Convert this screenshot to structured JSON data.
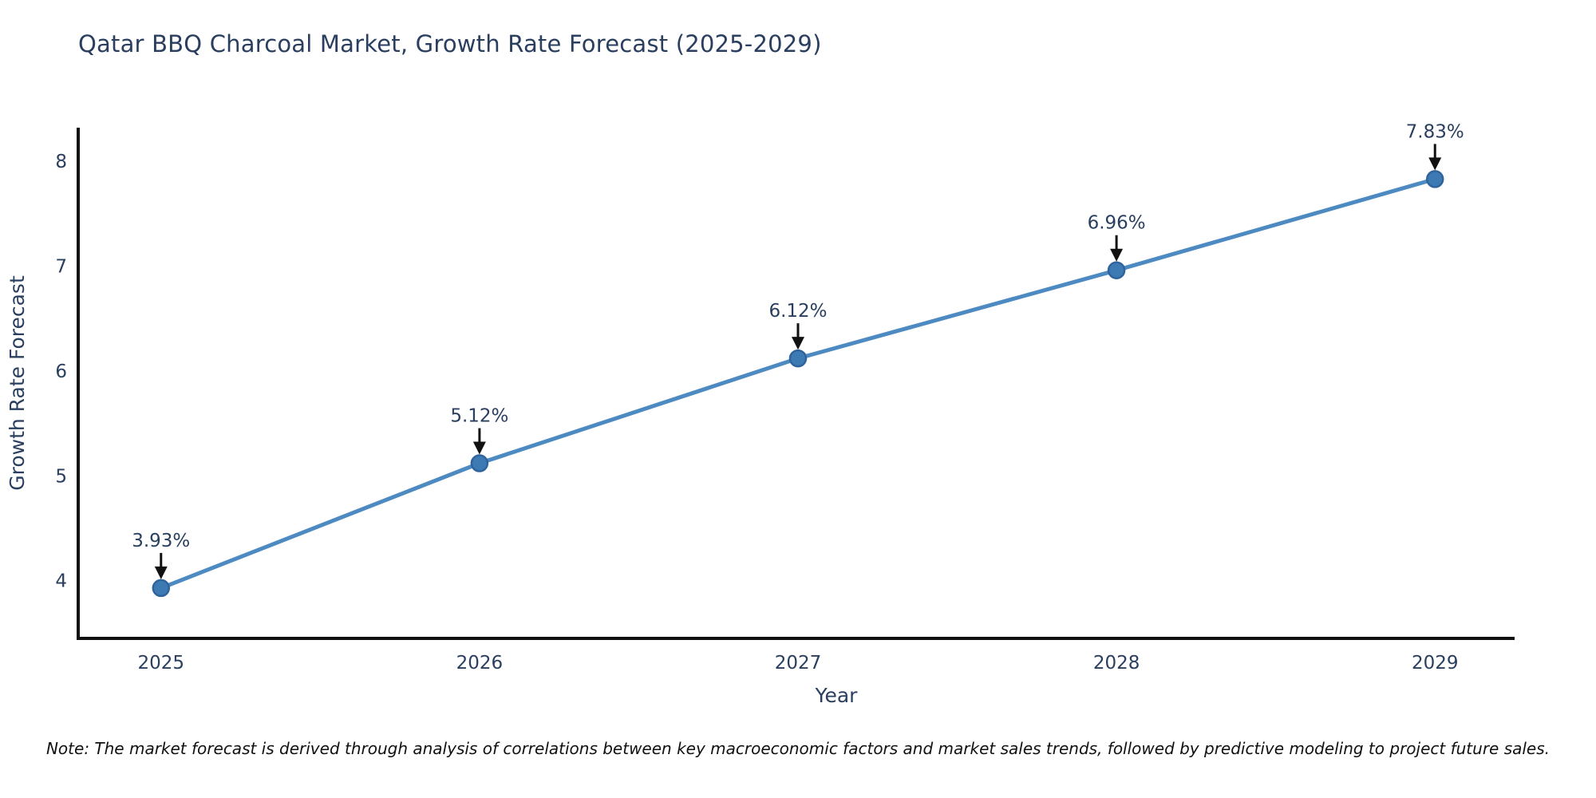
{
  "title": "Qatar BBQ Charcoal Market, Growth Rate Forecast (2025-2029)",
  "note": "Note: The market forecast is derived through analysis of correlations between key macroeconomic factors and market sales trends, followed by predictive modeling to project future sales.",
  "chart_data": {
    "type": "line",
    "title": "Qatar BBQ Charcoal Market, Growth Rate Forecast (2025-2029)",
    "xlabel": "Year",
    "ylabel": "Growth Rate Forecast",
    "x": [
      2025,
      2026,
      2027,
      2028,
      2029
    ],
    "y": [
      3.93,
      5.12,
      6.12,
      6.96,
      7.83
    ],
    "point_labels": [
      "3.93%",
      "5.12%",
      "6.12%",
      "6.96%",
      "7.83%"
    ],
    "xticks": [
      2025,
      2026,
      2027,
      2028,
      2029
    ],
    "yticks": [
      4,
      5,
      6,
      7,
      8
    ],
    "xlim": [
      2024.74,
      2029.25
    ],
    "ylim": [
      3.45,
      8.32
    ],
    "grid": false,
    "legend": "none",
    "annotations_have_arrows": true
  },
  "colors": {
    "title_text": "#2a3f5f",
    "axis_text": "#2a3f5f",
    "annotation_text": "#2a3f5f",
    "spine": "#101010",
    "line": "#4c8ac1",
    "marker_fill": "#3d7ab4",
    "marker_edge": "#2f639c",
    "arrow": "#111111",
    "note_text": "#111111",
    "background": "#ffffff"
  }
}
